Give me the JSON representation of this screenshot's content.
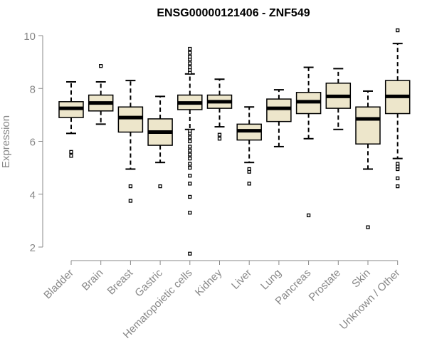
{
  "chart_data": {
    "type": "boxplot",
    "title": "ENSG00000121406 - ZNF549",
    "xlabel": "",
    "ylabel": "Expression",
    "ylim": [
      1.5,
      10.3
    ],
    "yticks": [
      2,
      4,
      6,
      8,
      10
    ],
    "colors": {
      "box_fill": "#EDE6CB",
      "stroke": "#000000",
      "axis": "#888888"
    },
    "series": [
      {
        "name": "Bladder",
        "whisker_low": 6.3,
        "q1": 6.9,
        "median": 7.25,
        "q3": 7.5,
        "whisker_high": 8.25,
        "outliers": [
          5.45,
          5.6
        ]
      },
      {
        "name": "Brain",
        "whisker_low": 6.65,
        "q1": 7.15,
        "median": 7.45,
        "q3": 7.75,
        "whisker_high": 8.25,
        "outliers": [
          8.85
        ]
      },
      {
        "name": "Breast",
        "whisker_low": 4.95,
        "q1": 6.35,
        "median": 6.9,
        "q3": 7.3,
        "whisker_high": 8.3,
        "outliers": [
          4.3,
          3.75
        ]
      },
      {
        "name": "Gastric",
        "whisker_low": 5.2,
        "q1": 5.85,
        "median": 6.35,
        "q3": 6.85,
        "whisker_high": 7.7,
        "outliers": [
          4.3
        ]
      },
      {
        "name": "Hematopoietic cells",
        "whisker_low": 6.45,
        "q1": 7.2,
        "median": 7.45,
        "q3": 7.75,
        "whisker_high": 8.55,
        "outliers": [
          1.75,
          3.3,
          3.9,
          4.4,
          4.7,
          5.0,
          5.15,
          5.35,
          5.5,
          5.65,
          5.8,
          6.0,
          6.15,
          6.3,
          6.4,
          8.6,
          8.7,
          8.8,
          8.95,
          9.1,
          9.2,
          9.35,
          9.5
        ]
      },
      {
        "name": "Kidney",
        "whisker_low": 6.55,
        "q1": 7.25,
        "median": 7.5,
        "q3": 7.75,
        "whisker_high": 8.35,
        "outliers": [
          6.1,
          6.25
        ]
      },
      {
        "name": "Liver",
        "whisker_low": 5.2,
        "q1": 6.05,
        "median": 6.4,
        "q3": 6.65,
        "whisker_high": 7.3,
        "outliers": [
          4.4,
          4.85,
          4.95
        ]
      },
      {
        "name": "Lung",
        "whisker_low": 5.8,
        "q1": 6.75,
        "median": 7.25,
        "q3": 7.6,
        "whisker_high": 7.95,
        "outliers": []
      },
      {
        "name": "Pancreas",
        "whisker_low": 6.1,
        "q1": 7.05,
        "median": 7.5,
        "q3": 7.85,
        "whisker_high": 8.8,
        "outliers": [
          3.2
        ]
      },
      {
        "name": "Prostate",
        "whisker_low": 6.45,
        "q1": 7.25,
        "median": 7.7,
        "q3": 8.2,
        "whisker_high": 8.75,
        "outliers": []
      },
      {
        "name": "Skin",
        "whisker_low": 4.95,
        "q1": 5.9,
        "median": 6.85,
        "q3": 7.3,
        "whisker_high": 7.9,
        "outliers": [
          2.75
        ]
      },
      {
        "name": "Unknown / Other",
        "whisker_low": 5.35,
        "q1": 7.05,
        "median": 7.7,
        "q3": 8.3,
        "whisker_high": 9.7,
        "outliers": [
          4.3,
          4.6,
          4.95,
          5.05,
          5.15,
          10.2
        ]
      }
    ]
  }
}
